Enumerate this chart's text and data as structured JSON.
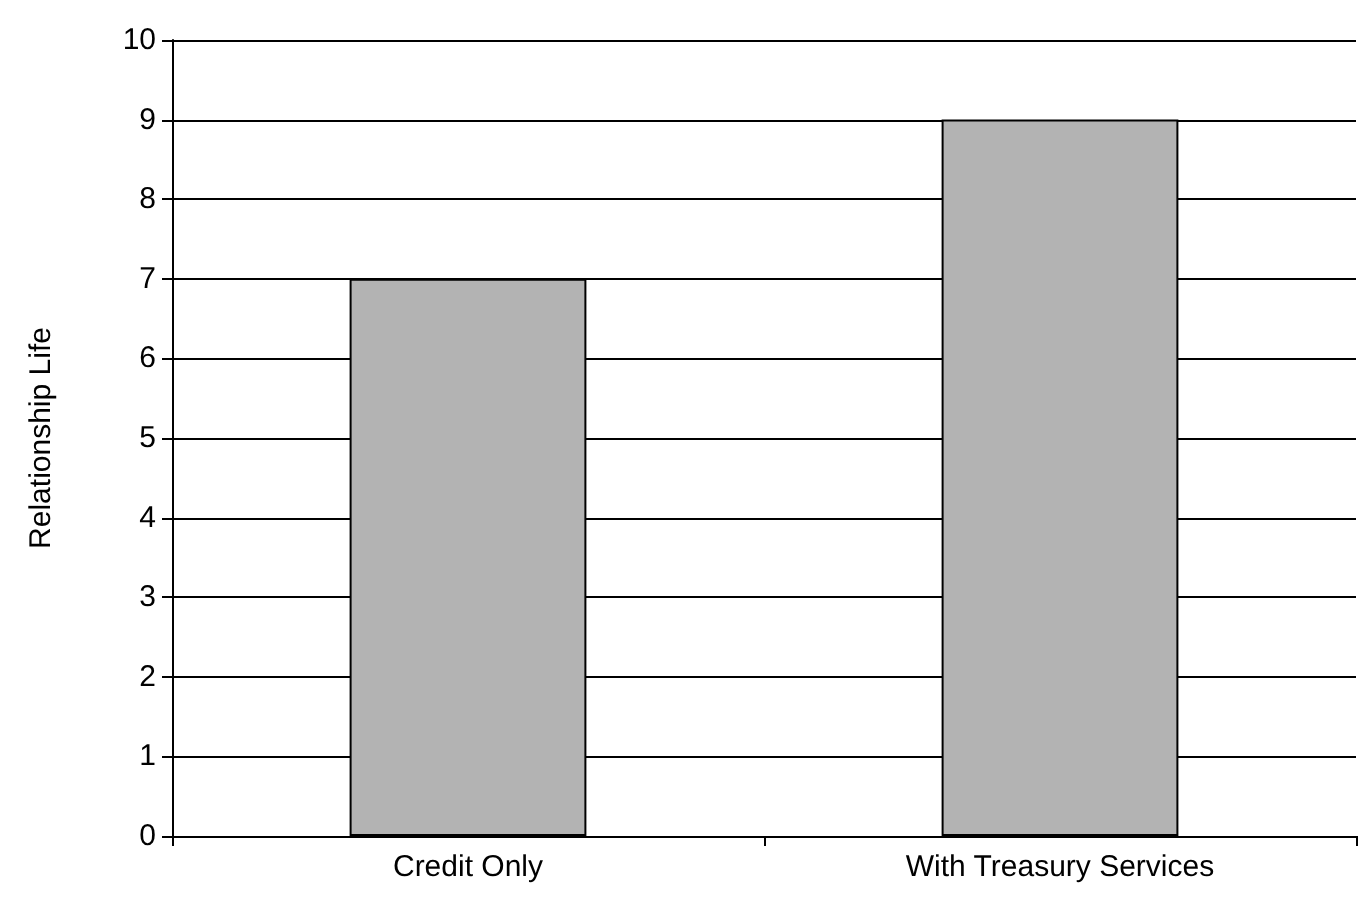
{
  "chart_data": {
    "type": "bar",
    "ylabel": "Relationship Life",
    "categories": [
      "Credit Only",
      "With Treasury Services"
    ],
    "values": [
      7,
      9
    ],
    "color": "#b3b3b3",
    "ylim": [
      0,
      10
    ],
    "yticks": [
      0,
      1,
      2,
      3,
      4,
      5,
      6,
      7,
      8,
      9,
      10
    ],
    "grid": "y"
  }
}
